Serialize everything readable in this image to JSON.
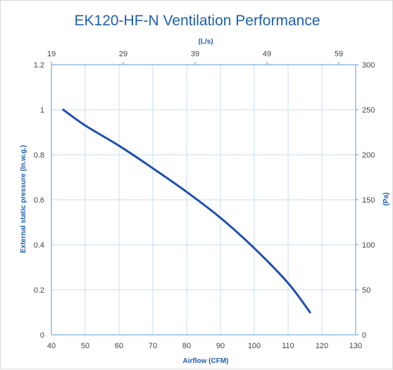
{
  "chart_data": {
    "type": "line",
    "title": "EK120-HF-N Ventilation Performance",
    "xlabel": "Airflow (CFM)",
    "ylabel": "External static pressure (In.w.g.)",
    "x2label": "(L/s)",
    "y2label": "(Pa)",
    "xlim": [
      40,
      130
    ],
    "ylim": [
      0,
      1.2
    ],
    "x2lim": [
      19,
      61.35
    ],
    "y2lim": [
      0,
      300
    ],
    "x_ticks": [
      "40",
      "50",
      "60",
      "70",
      "80",
      "90",
      "100",
      "110",
      "120",
      "130"
    ],
    "y_ticks": [
      "0",
      "0.2",
      "0.4",
      "0.6",
      "0.8",
      "1",
      "1.2"
    ],
    "x2_ticks": [
      "19",
      "29",
      "39",
      "49",
      "59"
    ],
    "y2_ticks": [
      "0",
      "50",
      "100",
      "150",
      "200",
      "250",
      "300"
    ],
    "grid": true,
    "series": [
      {
        "x": [
          43.5,
          50,
          60,
          70,
          80,
          90,
          100,
          110,
          116.5
        ],
        "y": [
          1.0,
          0.93,
          0.84,
          0.74,
          0.635,
          0.52,
          0.385,
          0.23,
          0.1
        ]
      }
    ],
    "colors": {
      "line": "#1f4fb0",
      "title": "#1f5fae",
      "grid": "#c9dcef",
      "axis": "#5b9bd5"
    }
  }
}
